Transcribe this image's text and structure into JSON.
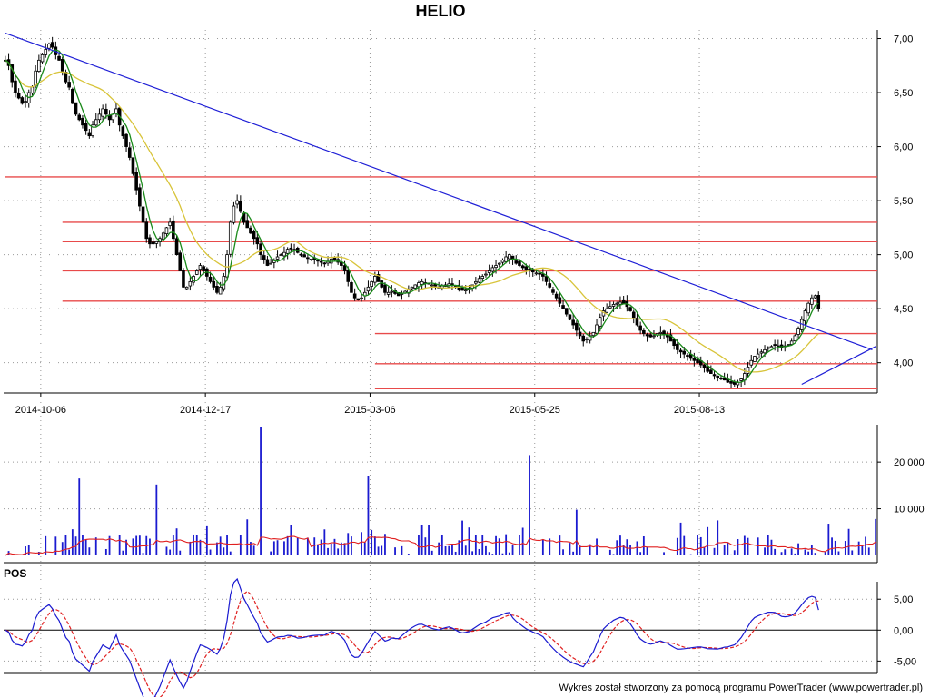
{
  "title": "HELIO",
  "footer": "Wykres został stworzony za pomocą programu PowerTrader (www.powertrader.pl)",
  "colors": {
    "trendline": "#1f1fd6",
    "levels": "#e84a4a",
    "sma_fast": "#1a8a1a",
    "sma_slow": "#d8c43a",
    "volume_bar": "#1a1ad0",
    "volume_avg": "#e02020",
    "pos_line": "#1a1ad0",
    "pos_signal": "#e02020"
  },
  "chart_data": [
    {
      "type": "line",
      "panel": "price",
      "title": "HELIO",
      "y_ticks": [
        "7,00",
        "6,50",
        "6,00",
        "5,50",
        "5,00",
        "4,50",
        "4,00"
      ],
      "y_tick_values": [
        7.0,
        6.5,
        6.0,
        5.5,
        5.0,
        4.5,
        4.0
      ],
      "ylim": [
        3.72,
        7.08
      ],
      "x_ticks": [
        "2014-10-06",
        "2014-12-17",
        "2015-03-06",
        "2015-05-25",
        "2015-08-13"
      ],
      "x_tick_index": [
        10,
        59,
        108,
        157,
        206
      ],
      "n_bars": 260,
      "close": [
        6.8,
        6.75,
        6.6,
        6.5,
        6.45,
        6.4,
        6.42,
        6.5,
        6.55,
        6.7,
        6.8,
        6.85,
        6.9,
        6.95,
        6.92,
        6.85,
        6.8,
        6.7,
        6.6,
        6.55,
        6.4,
        6.3,
        6.25,
        6.2,
        6.15,
        6.1,
        6.2,
        6.25,
        6.3,
        6.35,
        6.3,
        6.25,
        6.3,
        6.35,
        6.2,
        6.1,
        6.0,
        5.9,
        5.75,
        5.6,
        5.45,
        5.3,
        5.15,
        5.1,
        5.1,
        5.12,
        5.15,
        5.2,
        5.25,
        5.3,
        5.15,
        5.0,
        4.85,
        4.7,
        4.7,
        4.75,
        4.8,
        4.85,
        4.9,
        4.85,
        4.8,
        4.75,
        4.7,
        4.65,
        4.7,
        4.8,
        5.0,
        5.3,
        5.45,
        5.5,
        5.4,
        5.3,
        5.25,
        5.2,
        5.15,
        5.1,
        5.0,
        4.95,
        4.9,
        4.92,
        4.95,
        4.98,
        5.0,
        5.02,
        5.05,
        5.06,
        5.05,
        5.02,
        5.0,
        4.98,
        4.97,
        4.96,
        4.95,
        4.94,
        4.93,
        4.92,
        4.94,
        4.96,
        4.95,
        4.93,
        4.9,
        4.85,
        4.75,
        4.65,
        4.6,
        4.58,
        4.6,
        4.65,
        4.7,
        4.75,
        4.8,
        4.75,
        4.7,
        4.65,
        4.65,
        4.66,
        4.64,
        4.62,
        4.64,
        4.66,
        4.68,
        4.7,
        4.72,
        4.74,
        4.75,
        4.74,
        4.73,
        4.72,
        4.71,
        4.7,
        4.71,
        4.72,
        4.73,
        4.72,
        4.7,
        4.68,
        4.67,
        4.68,
        4.69,
        4.72,
        4.75,
        4.78,
        4.8,
        4.82,
        4.85,
        4.88,
        4.9,
        4.92,
        4.95,
        4.98,
        5.0,
        4.95,
        4.92,
        4.9,
        4.88,
        4.86,
        4.85,
        4.84,
        4.83,
        4.82,
        4.8,
        4.75,
        4.7,
        4.65,
        4.6,
        4.55,
        4.5,
        4.45,
        4.4,
        4.35,
        4.3,
        4.25,
        4.2,
        4.22,
        4.25,
        4.28,
        4.35,
        4.42,
        4.48,
        4.5,
        4.52,
        4.54,
        4.55,
        4.56,
        4.55,
        4.52,
        4.48,
        4.42,
        4.35,
        4.3,
        4.27,
        4.25,
        4.24,
        4.25,
        4.27,
        4.28,
        4.26,
        4.24,
        4.2,
        4.16,
        4.12,
        4.1,
        4.08,
        4.06,
        4.04,
        4.02,
        4.0,
        3.98,
        3.95,
        3.92,
        3.9,
        3.88,
        3.86,
        3.85,
        3.84,
        3.82,
        3.81,
        3.8,
        3.82,
        3.85,
        3.9,
        3.96,
        4.02,
        4.06,
        4.08,
        4.1,
        4.12,
        4.14,
        4.15,
        4.16,
        4.15,
        4.14,
        4.15,
        4.17,
        4.2,
        4.25,
        4.32,
        4.4,
        4.48,
        4.55,
        4.6,
        4.62,
        4.5
      ],
      "sma_fast_period": 5,
      "sma_slow_period": 20,
      "trendline": {
        "x": [
          0,
          258
        ],
        "y": [
          7.05,
          4.12
        ]
      },
      "support_line": {
        "x": [
          237,
          259
        ],
        "y": [
          3.8,
          4.15
        ]
      },
      "horizontal_levels": [
        {
          "value": 5.72,
          "from_index": 0
        },
        {
          "value": 5.3,
          "from_index": 17
        },
        {
          "value": 5.12,
          "from_index": 17
        },
        {
          "value": 4.85,
          "from_index": 17
        },
        {
          "value": 4.57,
          "from_index": 17
        },
        {
          "value": 4.27,
          "from_index": 110
        },
        {
          "value": 3.99,
          "from_index": 110
        },
        {
          "value": 3.76,
          "from_index": 110
        }
      ]
    },
    {
      "type": "bar",
      "panel": "volume",
      "y_ticks": [
        "20 000",
        "10 000"
      ],
      "y_tick_values": [
        20000,
        10000
      ],
      "ylim": [
        0,
        28000
      ],
      "spikes": [
        {
          "index": 22,
          "value": 16500
        },
        {
          "index": 45,
          "value": 15200
        },
        {
          "index": 76,
          "value": 27500
        },
        {
          "index": 108,
          "value": 17000
        },
        {
          "index": 156,
          "value": 21500
        },
        {
          "index": 170,
          "value": 9800
        },
        {
          "index": 212,
          "value": 7500
        },
        {
          "index": 259,
          "value": 7800
        }
      ],
      "avg_level": 2500
    },
    {
      "type": "line",
      "panel": "oscillator",
      "label": "POS",
      "y_ticks": [
        "5,00",
        "0,00",
        "-5,00"
      ],
      "y_tick_values": [
        5,
        0,
        -5
      ],
      "ylim": [
        -7,
        6.5
      ]
    }
  ]
}
